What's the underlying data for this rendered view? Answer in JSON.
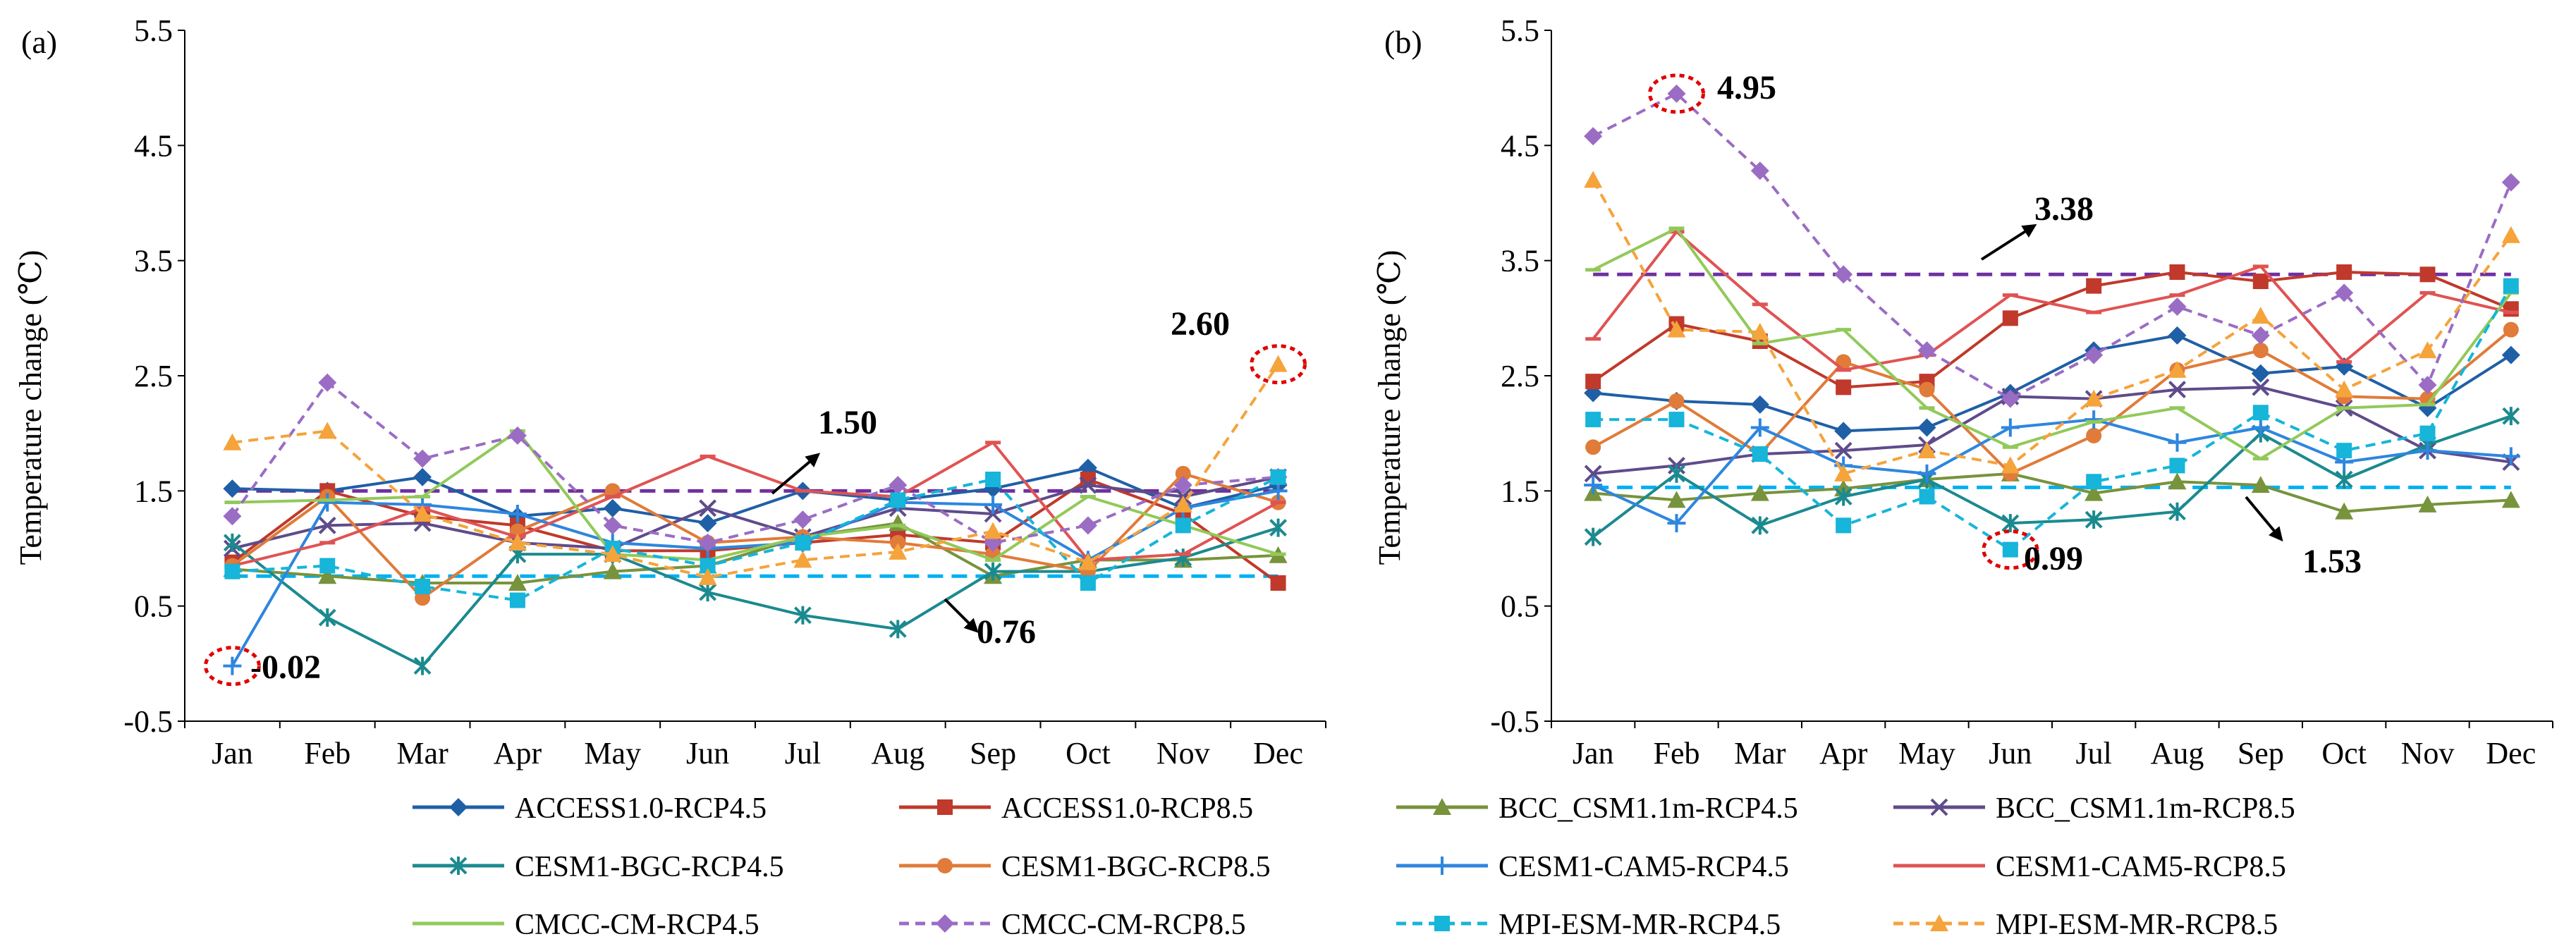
{
  "chart_data": [
    {
      "type": "line",
      "panel_label": "(a)",
      "ylabel": "Temperature change (℃)",
      "xlabel": "",
      "ylim": [
        -0.5,
        5.5
      ],
      "yticks": [
        -0.5,
        0.5,
        1.5,
        2.5,
        3.5,
        4.5,
        5.5
      ],
      "ytick_labels": [
        "-0.5",
        "0.5",
        "1.5",
        "2.5",
        "3.5",
        "4.5",
        "5.5"
      ],
      "categories": [
        "Jan",
        "Feb",
        "Mar",
        "Apr",
        "May",
        "Jun",
        "Jul",
        "Aug",
        "Sep",
        "Oct",
        "Nov",
        "Dec"
      ],
      "series": [
        {
          "name": "ACCESS1.0-RCP4.5",
          "values": [
            1.52,
            1.5,
            1.62,
            1.28,
            1.35,
            1.22,
            1.5,
            1.42,
            1.52,
            1.7,
            1.35,
            1.55
          ]
        },
        {
          "name": "ACCESS1.0-RCP8.5",
          "values": [
            0.88,
            1.5,
            1.28,
            1.2,
            0.98,
            0.98,
            1.05,
            1.12,
            1.05,
            1.6,
            1.3,
            0.7
          ]
        },
        {
          "name": "BCC_CSM1.1m-RCP4.5",
          "values": [
            0.82,
            0.76,
            0.7,
            0.7,
            0.8,
            0.85,
            1.1,
            1.22,
            0.76,
            0.9,
            0.9,
            0.94
          ]
        },
        {
          "name": "BCC_CSM1.1m-RCP8.5",
          "values": [
            1.0,
            1.2,
            1.22,
            1.05,
            1.0,
            1.35,
            1.1,
            1.35,
            1.3,
            1.55,
            1.45,
            1.62
          ]
        },
        {
          "name": "CESM1-BGC-RCP4.5",
          "values": [
            1.05,
            0.4,
            -0.02,
            0.95,
            0.95,
            0.62,
            0.42,
            0.3,
            0.8,
            0.8,
            0.92,
            1.18
          ]
        },
        {
          "name": "CESM1-BGC-RCP8.5",
          "values": [
            0.85,
            1.45,
            0.57,
            1.15,
            1.5,
            1.05,
            1.1,
            1.05,
            0.95,
            0.8,
            1.65,
            1.4
          ]
        },
        {
          "name": "CESM1-CAM5-RCP4.5",
          "values": [
            -0.02,
            1.4,
            1.38,
            1.3,
            1.05,
            1.0,
            1.05,
            1.4,
            1.38,
            0.9,
            1.35,
            1.5
          ]
        },
        {
          "name": "CESM1-CAM5-RCP8.5",
          "values": [
            0.85,
            1.05,
            1.35,
            1.1,
            1.45,
            1.8,
            1.5,
            1.45,
            1.92,
            0.9,
            0.95,
            1.4
          ]
        },
        {
          "name": "CMCC-CM-RCP4.5",
          "values": [
            1.4,
            1.42,
            1.45,
            2.02,
            0.95,
            0.9,
            1.1,
            1.2,
            0.9,
            1.45,
            1.2,
            0.95
          ]
        },
        {
          "name": "CMCC-CM-RCP8.5",
          "values": [
            1.28,
            2.44,
            1.78,
            1.98,
            1.2,
            1.05,
            1.25,
            1.55,
            1.05,
            1.2,
            1.55,
            1.62
          ]
        },
        {
          "name": "MPI-ESM-MR-RCP4.5",
          "values": [
            0.8,
            0.85,
            0.67,
            0.55,
            1.0,
            0.85,
            1.05,
            1.42,
            1.6,
            0.7,
            1.2,
            1.62
          ]
        },
        {
          "name": "MPI-ESM-MR-RCP8.5",
          "values": [
            1.92,
            2.02,
            1.3,
            1.05,
            0.95,
            0.75,
            0.9,
            0.97,
            1.15,
            0.88,
            1.38,
            2.6
          ]
        }
      ],
      "reference_lines": [
        {
          "name": "RCP8.5 mean",
          "value": 1.5,
          "color": "#7030a0"
        },
        {
          "name": "RCP4.5 mean",
          "value": 0.76,
          "color": "#00b0f0"
        }
      ],
      "annotations": [
        {
          "text": "1.50"
        },
        {
          "text": "0.76"
        },
        {
          "text": "2.60"
        },
        {
          "text": "-0.02"
        }
      ]
    },
    {
      "type": "line",
      "panel_label": "(b)",
      "ylabel": "Temperature change (℃)",
      "xlabel": "",
      "ylim": [
        -0.5,
        5.5
      ],
      "yticks": [
        -0.5,
        0.5,
        1.5,
        2.5,
        3.5,
        4.5,
        5.5
      ],
      "ytick_labels": [
        "-0.5",
        "0.5",
        "1.5",
        "2.5",
        "3.5",
        "4.5",
        "5.5"
      ],
      "categories": [
        "Jan",
        "Feb",
        "Mar",
        "Apr",
        "May",
        "Jun",
        "Jul",
        "Aug",
        "Sep",
        "Oct",
        "Nov",
        "Dec"
      ],
      "series": [
        {
          "name": "ACCESS1.0-RCP4.5",
          "values": [
            2.35,
            2.28,
            2.25,
            2.02,
            2.05,
            2.35,
            2.72,
            2.85,
            2.52,
            2.58,
            2.22,
            2.68
          ]
        },
        {
          "name": "ACCESS1.0-RCP8.5",
          "values": [
            2.45,
            2.95,
            2.8,
            2.4,
            2.45,
            3.0,
            3.28,
            3.4,
            3.32,
            3.4,
            3.38,
            3.08
          ]
        },
        {
          "name": "BCC_CSM1.1m-RCP4.5",
          "values": [
            1.48,
            1.42,
            1.48,
            1.52,
            1.6,
            1.65,
            1.48,
            1.58,
            1.55,
            1.32,
            1.38,
            1.42
          ]
        },
        {
          "name": "BCC_CSM1.1m-RCP8.5",
          "values": [
            1.65,
            1.72,
            1.82,
            1.85,
            1.9,
            2.32,
            2.3,
            2.38,
            2.4,
            2.22,
            1.85,
            1.75
          ]
        },
        {
          "name": "CESM1-BGC-RCP4.5",
          "values": [
            1.1,
            1.65,
            1.2,
            1.45,
            1.6,
            1.22,
            1.25,
            1.32,
            2.0,
            1.6,
            1.9,
            2.15
          ]
        },
        {
          "name": "CESM1-BGC-RCP8.5",
          "values": [
            1.88,
            2.28,
            1.82,
            2.62,
            2.38,
            1.65,
            1.98,
            2.55,
            2.72,
            2.32,
            2.3,
            2.9
          ]
        },
        {
          "name": "CESM1-CAM5-RCP4.5",
          "values": [
            1.55,
            1.22,
            2.05,
            1.72,
            1.65,
            2.05,
            2.12,
            1.92,
            2.05,
            1.75,
            1.85,
            1.8
          ]
        },
        {
          "name": "CESM1-CAM5-RCP8.5",
          "values": [
            2.82,
            3.75,
            3.12,
            2.55,
            2.68,
            3.2,
            3.05,
            3.2,
            3.45,
            2.62,
            3.22,
            3.05
          ]
        },
        {
          "name": "CMCC-CM-RCP4.5",
          "values": [
            3.42,
            3.78,
            2.78,
            2.9,
            2.22,
            1.88,
            2.1,
            2.22,
            1.78,
            2.22,
            2.25,
            3.22
          ]
        },
        {
          "name": "CMCC-CM-RCP8.5",
          "values": [
            4.58,
            4.95,
            4.28,
            3.38,
            2.72,
            2.3,
            2.68,
            3.1,
            2.85,
            3.22,
            2.42,
            4.18
          ]
        },
        {
          "name": "MPI-ESM-MR-RCP4.5",
          "values": [
            2.12,
            2.12,
            1.82,
            1.2,
            1.45,
            0.99,
            1.58,
            1.72,
            2.18,
            1.85,
            2.0,
            3.28
          ]
        },
        {
          "name": "MPI-ESM-MR-RCP8.5",
          "values": [
            4.2,
            2.9,
            2.88,
            1.65,
            1.85,
            1.72,
            2.3,
            2.55,
            3.02,
            2.38,
            2.72,
            3.72
          ]
        }
      ],
      "reference_lines": [
        {
          "name": "RCP8.5 mean",
          "value": 3.38,
          "color": "#7030a0"
        },
        {
          "name": "RCP4.5 mean",
          "value": 1.53,
          "color": "#00b0f0"
        }
      ],
      "annotations": [
        {
          "text": "4.95"
        },
        {
          "text": "3.38"
        },
        {
          "text": "0.99"
        },
        {
          "text": "1.53"
        }
      ]
    }
  ],
  "legend": {
    "placement": "bottom",
    "items": [
      {
        "name": "ACCESS1.0-RCP4.5",
        "color": "#1f5fa6",
        "marker": "diamond",
        "dash": "solid"
      },
      {
        "name": "ACCESS1.0-RCP8.5",
        "color": "#c0392b",
        "marker": "square",
        "dash": "solid"
      },
      {
        "name": "BCC_CSM1.1m-RCP4.5",
        "color": "#77933c",
        "marker": "triangle",
        "dash": "solid"
      },
      {
        "name": "BCC_CSM1.1m-RCP8.5",
        "color": "#5f4b8b",
        "marker": "x",
        "dash": "solid"
      },
      {
        "name": "CESM1-BGC-RCP4.5",
        "color": "#1b8a8f",
        "marker": "star",
        "dash": "solid"
      },
      {
        "name": "CESM1-BGC-RCP8.5",
        "color": "#e07b39",
        "marker": "circle",
        "dash": "solid"
      },
      {
        "name": "CESM1-CAM5-RCP4.5",
        "color": "#2e86de",
        "marker": "plus",
        "dash": "solid"
      },
      {
        "name": "CESM1-CAM5-RCP8.5",
        "color": "#e05353",
        "marker": "dash",
        "dash": "solid"
      },
      {
        "name": "CMCC-CM-RCP4.5",
        "color": "#92c95a",
        "marker": "dash",
        "dash": "solid"
      },
      {
        "name": "CMCC-CM-RCP8.5",
        "color": "#9b6cc4",
        "marker": "diamond",
        "dash": "dashed"
      },
      {
        "name": "MPI-ESM-MR-RCP4.5",
        "color": "#16b5d9",
        "marker": "square",
        "dash": "dashed"
      },
      {
        "name": "MPI-ESM-MR-RCP8.5",
        "color": "#f5a33b",
        "marker": "triangle",
        "dash": "dashed"
      }
    ]
  }
}
